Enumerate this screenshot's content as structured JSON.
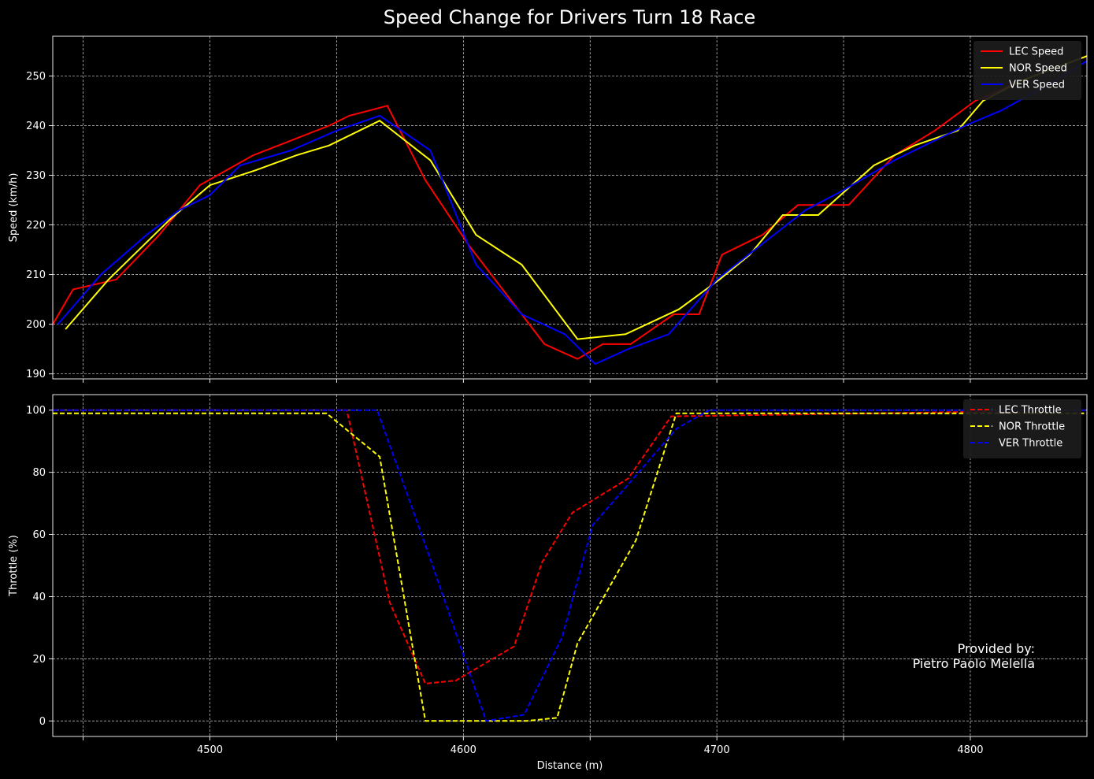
{
  "title": "Speed Change for Drivers Turn 18 Race",
  "credit": [
    "Provided by:",
    "Pietro Paolo Melella"
  ],
  "chart_data": [
    {
      "id": "speed",
      "type": "line",
      "ylabel": "Speed (km/h)",
      "xlabel": "",
      "xlim": [
        4438,
        4846
      ],
      "ylim": [
        189,
        258
      ],
      "xticks": [
        4450,
        4500,
        4550,
        4600,
        4650,
        4700,
        4750,
        4800
      ],
      "xtick_labels": [
        "",
        "",
        "",
        "",
        "",
        "",
        "",
        ""
      ],
      "yticks": [
        190,
        200,
        210,
        220,
        230,
        240,
        250
      ],
      "legend_position": "top-right",
      "grid": true,
      "series": [
        {
          "name": "LEC Speed",
          "color": "#ff0000",
          "dash": "solid",
          "x": [
            4438,
            4446,
            4463,
            4480,
            4496,
            4517,
            4532,
            4547,
            4555,
            4570,
            4585,
            4602,
            4617,
            4632,
            4645,
            4655,
            4666,
            4683,
            4693,
            4702,
            4718,
            4732,
            4752,
            4770,
            4786,
            4802,
            4820,
            4846
          ],
          "y": [
            200,
            207,
            209,
            218,
            228,
            234,
            237,
            240,
            242,
            244,
            229,
            216,
            206,
            196,
            193,
            196,
            196,
            202,
            202,
            214,
            218,
            224,
            224,
            234,
            239,
            245,
            249,
            254
          ]
        },
        {
          "name": "NOR Speed",
          "color": "#ffff00",
          "dash": "solid",
          "x": [
            4443,
            4460,
            4484,
            4500,
            4518,
            4534,
            4547,
            4567,
            4587,
            4605,
            4623,
            4645,
            4664,
            4685,
            4701,
            4713,
            4726,
            4740,
            4762,
            4778,
            4795,
            4805,
            4820,
            4846
          ],
          "y": [
            199,
            209,
            221,
            228,
            231,
            234,
            236,
            241,
            233,
            218,
            212,
            197,
            198,
            203,
            209,
            214,
            222,
            222,
            232,
            236,
            239,
            245,
            249,
            254
          ]
        },
        {
          "name": "VER Speed",
          "color": "#0000ff",
          "dash": "solid",
          "x": [
            4440,
            4457,
            4475,
            4488,
            4500,
            4512,
            4532,
            4550,
            4567,
            4587,
            4605,
            4623,
            4640,
            4652,
            4665,
            4681,
            4700,
            4715,
            4735,
            4750,
            4770,
            4786,
            4798,
            4812,
            4830,
            4846
          ],
          "y": [
            200,
            210,
            218,
            223,
            226,
            232,
            235,
            239,
            242,
            235,
            212,
            202,
            198,
            192,
            195,
            198,
            209,
            215,
            223,
            227,
            233,
            237,
            240,
            243,
            248,
            253
          ]
        }
      ]
    },
    {
      "id": "throttle",
      "type": "line",
      "ylabel": "Throttle (%)",
      "xlabel": "Distance (m)",
      "xlim": [
        4438,
        4846
      ],
      "ylim": [
        -5,
        105
      ],
      "xticks": [
        4450,
        4500,
        4550,
        4600,
        4650,
        4700,
        4750,
        4800
      ],
      "xtick_labels": [
        "",
        "4500",
        "",
        "4600",
        "",
        "4700",
        "",
        "4800"
      ],
      "yticks": [
        0,
        20,
        40,
        60,
        80,
        100
      ],
      "legend_position": "top-right",
      "grid": true,
      "series": [
        {
          "name": "LEC Throttle",
          "color": "#ff0000",
          "dash": "dashed",
          "x": [
            4438,
            4554,
            4571,
            4585,
            4597,
            4620,
            4631,
            4643,
            4665,
            4682,
            4846
          ],
          "y": [
            100,
            100,
            38,
            12,
            13,
            24,
            51,
            67,
            78,
            98,
            100
          ]
        },
        {
          "name": "NOR Throttle",
          "color": "#ffff00",
          "dash": "dashed",
          "x": [
            4438,
            4546,
            4567,
            4585,
            4625,
            4637,
            4645,
            4668,
            4684,
            4846
          ],
          "y": [
            99,
            99,
            85,
            0,
            0,
            1,
            25,
            58,
            99,
            99
          ]
        },
        {
          "name": "VER Throttle",
          "color": "#0000ff",
          "dash": "dashed",
          "x": [
            4438,
            4566,
            4587,
            4609,
            4624,
            4639,
            4651,
            4666,
            4684,
            4697,
            4846
          ],
          "y": [
            100,
            100,
            52,
            0,
            2,
            27,
            63,
            77,
            94,
            100,
            100
          ]
        }
      ]
    }
  ]
}
